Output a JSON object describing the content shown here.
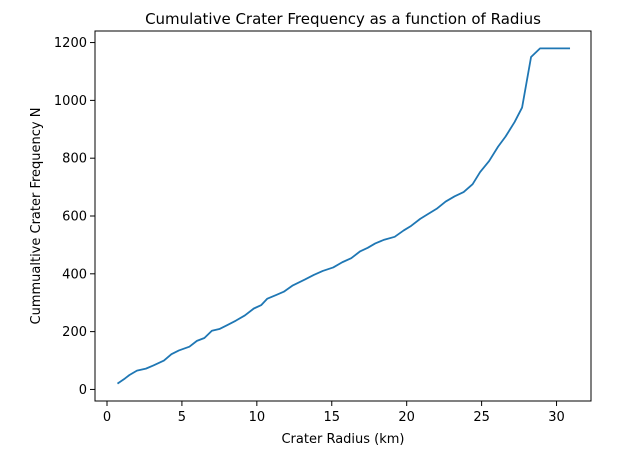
{
  "chart_data": {
    "type": "line",
    "title": "Cumulative Crater Frequency as a function of Radius",
    "xlabel": "Crater Radius (km)",
    "ylabel": "Cummualtive Crater Frequency N",
    "xlim": [
      -0.8,
      32.3
    ],
    "ylim": [
      -40,
      1240
    ],
    "xticks": [
      0,
      5,
      10,
      15,
      20,
      25,
      30
    ],
    "yticks": [
      0,
      200,
      400,
      600,
      800,
      1000,
      1200
    ],
    "grid": false,
    "line_color": "#1f77b4",
    "series": [
      {
        "x": [
          0.7,
          1.2,
          1.5,
          2.0,
          2.6,
          3.1,
          3.8,
          4.3,
          4.8,
          5.5,
          6.0,
          6.5,
          7.0,
          7.5,
          8.0,
          8.6,
          9.2,
          9.8,
          10.3,
          10.7,
          11.3,
          11.8,
          12.4,
          13.2,
          13.8,
          14.4,
          15.1,
          15.7,
          16.3,
          16.9,
          17.4,
          17.9,
          18.5,
          19.2,
          19.8,
          20.3,
          20.9,
          21.4,
          22.0,
          22.6,
          23.2,
          23.8,
          24.4,
          24.9,
          25.5,
          26.1,
          26.6,
          27.2,
          27.7,
          28.3,
          28.9,
          29.4,
          30.0,
          30.4,
          30.9
        ],
        "y": [
          20,
          38,
          50,
          65,
          72,
          83,
          100,
          122,
          135,
          148,
          168,
          178,
          203,
          209,
          222,
          238,
          256,
          280,
          292,
          314,
          327,
          338,
          360,
          380,
          396,
          410,
          422,
          440,
          454,
          478,
          490,
          505,
          518,
          528,
          550,
          566,
          590,
          606,
          625,
          650,
          668,
          683,
          710,
          752,
          790,
          840,
          875,
          925,
          975,
          1150,
          1180,
          1180,
          1180,
          1180,
          1180
        ]
      }
    ]
  }
}
